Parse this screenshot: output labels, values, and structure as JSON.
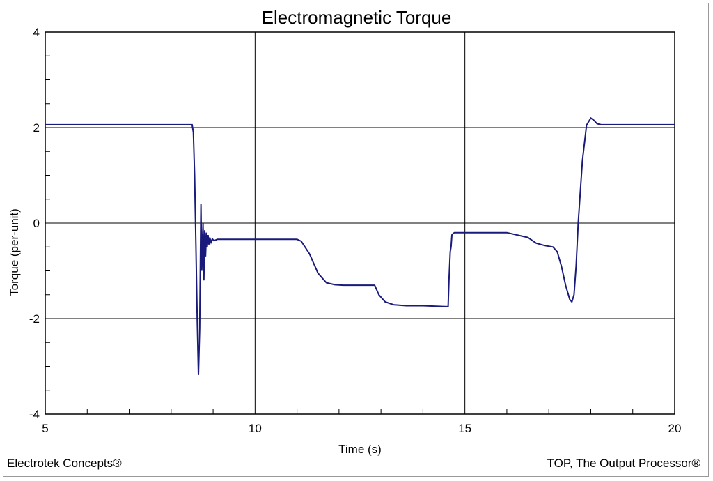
{
  "chart_data": {
    "type": "line",
    "title": "Electromagnetic Torque",
    "xlabel": "Time (s)",
    "ylabel": "Torque (per-unit)",
    "xlim": [
      5,
      20
    ],
    "ylim": [
      -4,
      4
    ],
    "x_ticks": [
      5,
      10,
      15,
      20
    ],
    "y_ticks": [
      -4,
      -2,
      0,
      2,
      4
    ],
    "x_tick_labels": [
      "5",
      "10",
      "15",
      "20"
    ],
    "y_tick_labels": [
      "-4",
      "-2",
      "0",
      "2",
      "4"
    ],
    "grid": true,
    "series": [
      {
        "color": "#1a1a7a",
        "x": [
          5.0,
          8.5,
          8.53,
          8.56,
          8.59,
          8.62,
          8.65,
          8.68,
          8.71,
          8.73,
          8.76,
          8.78,
          8.8,
          8.82,
          8.84,
          8.86,
          8.88,
          8.9,
          8.92,
          8.95,
          8.98,
          9.02,
          9.1,
          9.3,
          11.0,
          11.1,
          11.3,
          11.5,
          11.7,
          11.9,
          12.1,
          12.5,
          12.85,
          12.95,
          13.1,
          13.3,
          13.6,
          14.0,
          14.6,
          14.62,
          14.65,
          14.67,
          14.69,
          14.72,
          14.75,
          14.8,
          15.0,
          16.0,
          16.5,
          16.7,
          16.9,
          17.1,
          17.2,
          17.3,
          17.4,
          17.5,
          17.55,
          17.6,
          17.65,
          17.7,
          17.8,
          17.9,
          18.0,
          18.08,
          18.15,
          18.25,
          18.35,
          18.6,
          20.0
        ],
        "y": [
          2.06,
          2.06,
          1.9,
          1.0,
          -0.5,
          -2.0,
          -3.18,
          -2.2,
          0.4,
          -1.0,
          0.0,
          -1.2,
          -0.15,
          -0.7,
          -0.2,
          -0.5,
          -0.25,
          -0.45,
          -0.3,
          -0.4,
          -0.33,
          -0.37,
          -0.34,
          -0.34,
          -0.34,
          -0.38,
          -0.65,
          -1.05,
          -1.25,
          -1.29,
          -1.3,
          -1.3,
          -1.3,
          -1.5,
          -1.65,
          -1.71,
          -1.73,
          -1.73,
          -1.75,
          -1.2,
          -0.6,
          -0.5,
          -0.25,
          -0.22,
          -0.2,
          -0.2,
          -0.2,
          -0.2,
          -0.3,
          -0.42,
          -0.47,
          -0.5,
          -0.6,
          -0.9,
          -1.3,
          -1.6,
          -1.65,
          -1.5,
          -0.9,
          0.0,
          1.3,
          2.05,
          2.2,
          2.15,
          2.08,
          2.06,
          2.06,
          2.06,
          2.06
        ]
      }
    ]
  },
  "footer": {
    "left": "Electrotek Concepts®",
    "right": "TOP, The Output Processor®"
  }
}
